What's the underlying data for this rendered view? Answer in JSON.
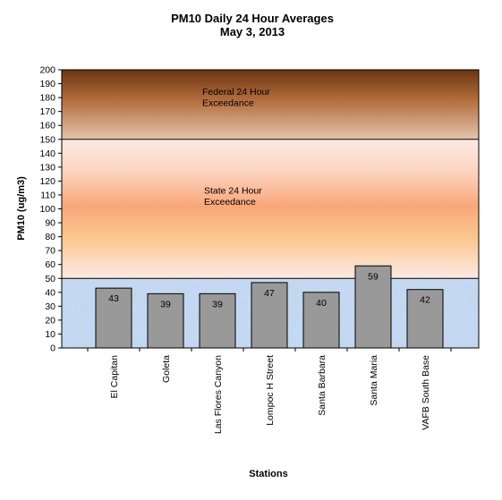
{
  "chart_data": {
    "type": "bar",
    "title": "PM10 Daily 24 Hour Averages",
    "subtitle": "May 3, 2013",
    "xlabel": "Stations",
    "ylabel": "PM10 (ug/m3)",
    "ylim": [
      0,
      200
    ],
    "yticks": [
      0,
      10,
      20,
      30,
      40,
      50,
      60,
      70,
      80,
      90,
      100,
      110,
      120,
      130,
      140,
      150,
      160,
      170,
      180,
      190,
      200
    ],
    "categories": [
      "El Capitan",
      "Goleta",
      "Las Flores Canyon",
      "Lompoc H Street",
      "Santa Barbara",
      "Santa Maria",
      "VAFB South Base"
    ],
    "values": [
      43,
      39,
      39,
      47,
      40,
      59,
      42
    ],
    "bar_color": "#999999",
    "grid": false,
    "zones": [
      {
        "label_lines": [
          "Federal 24 Hour",
          "Exceedance"
        ],
        "from": 150,
        "to": 200,
        "color_top": "#6b3410",
        "color_bottom": "#e3c4ad"
      },
      {
        "label_lines": [
          "State 24 Hour",
          "Exceedance"
        ],
        "from": 50,
        "to": 150,
        "color_mid": "#f9a77a",
        "color_edge": "#fde9e4"
      },
      {
        "label_lines": [],
        "from": 0,
        "to": 50,
        "color": "#c3d7ee"
      }
    ]
  }
}
